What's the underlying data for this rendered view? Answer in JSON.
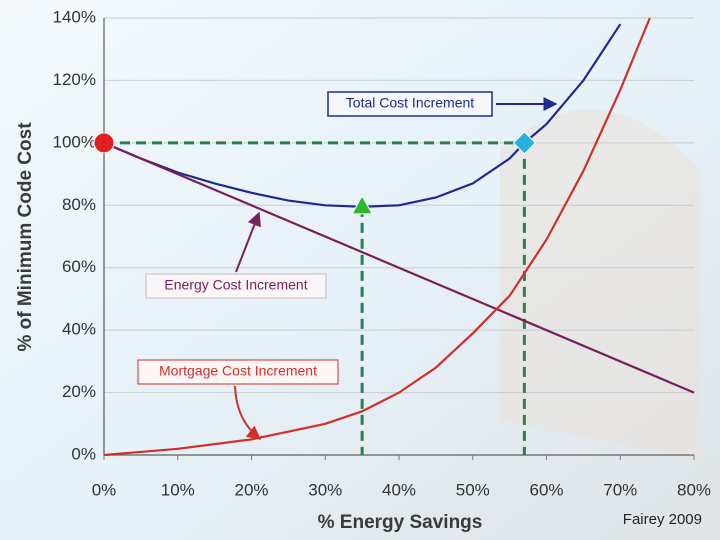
{
  "chart_data": {
    "type": "line",
    "x_label": "% Energy Savings",
    "y_label": "% of Minimum Code Cost",
    "source": "Fairey 2009",
    "xlim": [
      0,
      80
    ],
    "xticks": [
      {
        "value": 0,
        "label": "0%"
      },
      {
        "value": 10,
        "label": "10%"
      },
      {
        "value": 20,
        "label": "20%"
      },
      {
        "value": 30,
        "label": "30%"
      },
      {
        "value": 40,
        "label": "40%"
      },
      {
        "value": 50,
        "label": "50%"
      },
      {
        "value": 60,
        "label": "60%"
      },
      {
        "value": 70,
        "label": "70%"
      },
      {
        "value": 80,
        "label": "80%"
      }
    ],
    "ylim": [
      0,
      140
    ],
    "yticks": [
      {
        "value": 0,
        "label": "0%"
      },
      {
        "value": 20,
        "label": "20%"
      },
      {
        "value": 40,
        "label": "40%"
      },
      {
        "value": 60,
        "label": "60%"
      },
      {
        "value": 80,
        "label": "80%"
      },
      {
        "value": 100,
        "label": "100%"
      },
      {
        "value": 120,
        "label": "120%"
      },
      {
        "value": 140,
        "label": "140%"
      }
    ],
    "grid": true,
    "series": [
      {
        "name": "Total Cost Increment",
        "color": "#1f2a8a",
        "x": [
          0,
          5,
          10,
          15,
          20,
          25,
          30,
          35,
          40,
          45,
          50,
          55,
          57,
          60,
          65,
          70
        ],
        "values": [
          100,
          95,
          90.5,
          87,
          84,
          81.5,
          80,
          79.5,
          80,
          82.5,
          87,
          95,
          100,
          106,
          120,
          138
        ]
      },
      {
        "name": "Energy Cost Increment",
        "color": "#7a1f5a",
        "x": [
          0,
          80
        ],
        "values": [
          100,
          20
        ]
      },
      {
        "name": "Mortgage Cost Increment",
        "color": "#d0302a",
        "x": [
          0,
          10,
          20,
          30,
          35,
          40,
          45,
          50,
          55,
          60,
          65,
          70,
          74
        ],
        "values": [
          0,
          2,
          5,
          10,
          14,
          20,
          28,
          39,
          51,
          69,
          91,
          117,
          140
        ]
      }
    ],
    "markers": [
      {
        "x": 0,
        "y": 100,
        "shape": "circle",
        "color": "#e02020"
      },
      {
        "x": 35,
        "y": 79.5,
        "shape": "triangle",
        "color": "#2db82d"
      },
      {
        "x": 57,
        "y": 100,
        "shape": "diamond",
        "color": "#2ab0e0"
      }
    ],
    "guide_color": "#2e7d4f"
  }
}
